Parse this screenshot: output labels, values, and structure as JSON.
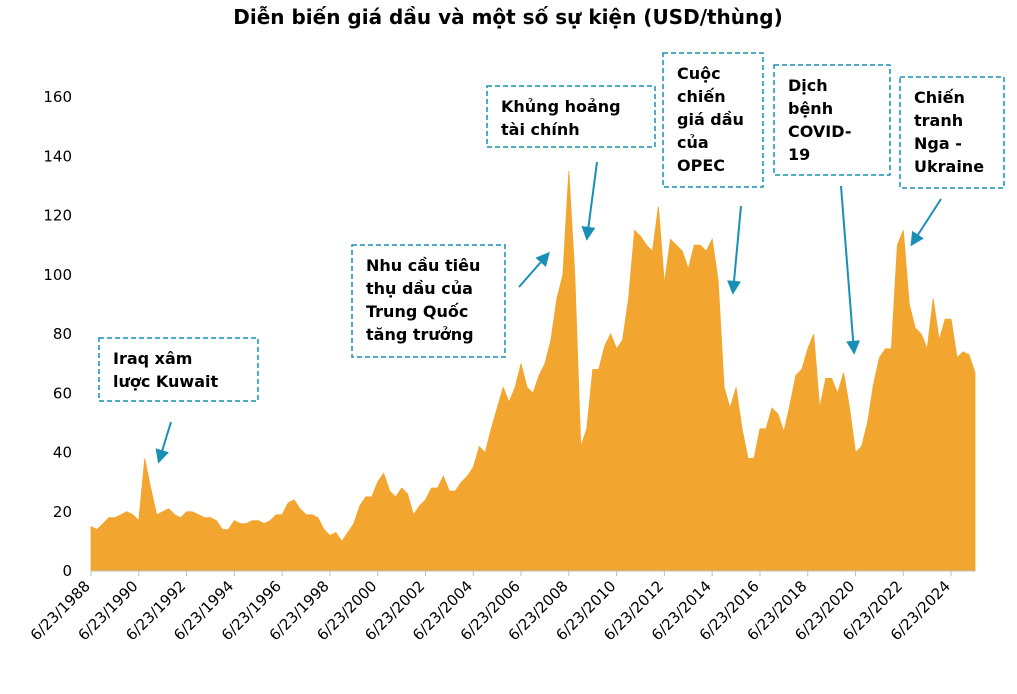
{
  "chart_data": {
    "type": "area",
    "title": "Diễn biến giá dầu và một số sự kiện (USD/thùng)",
    "color": "#f2a630",
    "categories": [
      "6/23/1988",
      null,
      null,
      null,
      null,
      null,
      null,
      null,
      "6/23/1990",
      null,
      null,
      null,
      null,
      null,
      null,
      null,
      "6/23/1992",
      null,
      null,
      null,
      null,
      null,
      null,
      null,
      "6/23/1994",
      null,
      null,
      null,
      null,
      null,
      null,
      null,
      "6/23/1996",
      null,
      null,
      null,
      null,
      null,
      null,
      null,
      "6/23/1998",
      null,
      null,
      null,
      null,
      null,
      null,
      null,
      "6/23/2000",
      null,
      null,
      null,
      null,
      null,
      null,
      null,
      "6/23/2002",
      null,
      null,
      null,
      null,
      null,
      null,
      null,
      "6/23/2004",
      null,
      null,
      null,
      null,
      null,
      null,
      null,
      "6/23/2006",
      null,
      null,
      null,
      null,
      null,
      null,
      null,
      "6/23/2008",
      null,
      null,
      null,
      null,
      null,
      null,
      null,
      "6/23/2010",
      null,
      null,
      null,
      null,
      null,
      null,
      null,
      "6/23/2012",
      null,
      null,
      null,
      null,
      null,
      null,
      null,
      "6/23/2014",
      null,
      null,
      null,
      null,
      null,
      null,
      null,
      "6/23/2016",
      null,
      null,
      null,
      null,
      null,
      null,
      null,
      "6/23/2018",
      null,
      null,
      null,
      null,
      null,
      null,
      null,
      "6/23/2020",
      null,
      null,
      null,
      null,
      null,
      null,
      null,
      "6/23/2022",
      null,
      null,
      null,
      null,
      null,
      null,
      null,
      "6/23/2024",
      null,
      null,
      null,
      null
    ],
    "values": [
      15,
      14,
      16,
      18,
      18,
      19,
      20,
      19,
      17,
      38,
      28,
      19,
      20,
      21,
      19,
      18,
      20,
      20,
      19,
      18,
      18,
      17,
      14,
      14,
      17,
      16,
      16,
      17,
      17,
      16,
      17,
      19,
      19,
      23,
      24,
      21,
      19,
      19,
      18,
      14,
      12,
      13,
      10,
      13,
      16,
      22,
      25,
      25,
      30,
      33,
      27,
      25,
      28,
      26,
      19,
      22,
      24,
      28,
      28,
      32,
      27,
      27,
      30,
      32,
      35,
      42,
      40,
      48,
      55,
      62,
      57,
      62,
      70,
      62,
      60,
      66,
      70,
      78,
      92,
      100,
      135,
      100,
      42,
      48,
      68,
      68,
      76,
      80,
      75,
      78,
      92,
      115,
      113,
      110,
      108,
      123,
      97,
      112,
      110,
      108,
      102,
      110,
      110,
      108,
      112,
      98,
      62,
      55,
      62,
      48,
      38,
      38,
      48,
      48,
      55,
      53,
      47,
      56,
      66,
      68,
      75,
      80,
      55,
      65,
      65,
      60,
      67,
      55,
      40,
      42,
      50,
      63,
      72,
      75,
      75,
      110,
      115,
      90,
      82,
      80,
      75,
      92,
      78,
      85,
      85,
      72,
      74,
      73,
      67
    ],
    "ylim": [
      0,
      160
    ],
    "yticks": [
      0,
      20,
      40,
      60,
      80,
      100,
      120,
      140,
      160
    ],
    "annotations": [
      {
        "lines": [
          "Iraq xâm",
          "lược Kuwait"
        ]
      },
      {
        "lines": [
          "Nhu cầu tiêu",
          "thụ dầu của",
          "Trung Quốc",
          "tăng trưởng"
        ]
      },
      {
        "lines": [
          "Khủng hoảng",
          "tài chính"
        ]
      },
      {
        "lines": [
          "Cuộc",
          "chiến",
          "giá dầu",
          "của",
          "OPEC"
        ]
      },
      {
        "lines": [
          "Dịch",
          "bệnh",
          "COVID-",
          "19"
        ]
      },
      {
        "lines": [
          "Chiến",
          "tranh",
          "Nga -",
          "Ukraine"
        ]
      }
    ]
  }
}
